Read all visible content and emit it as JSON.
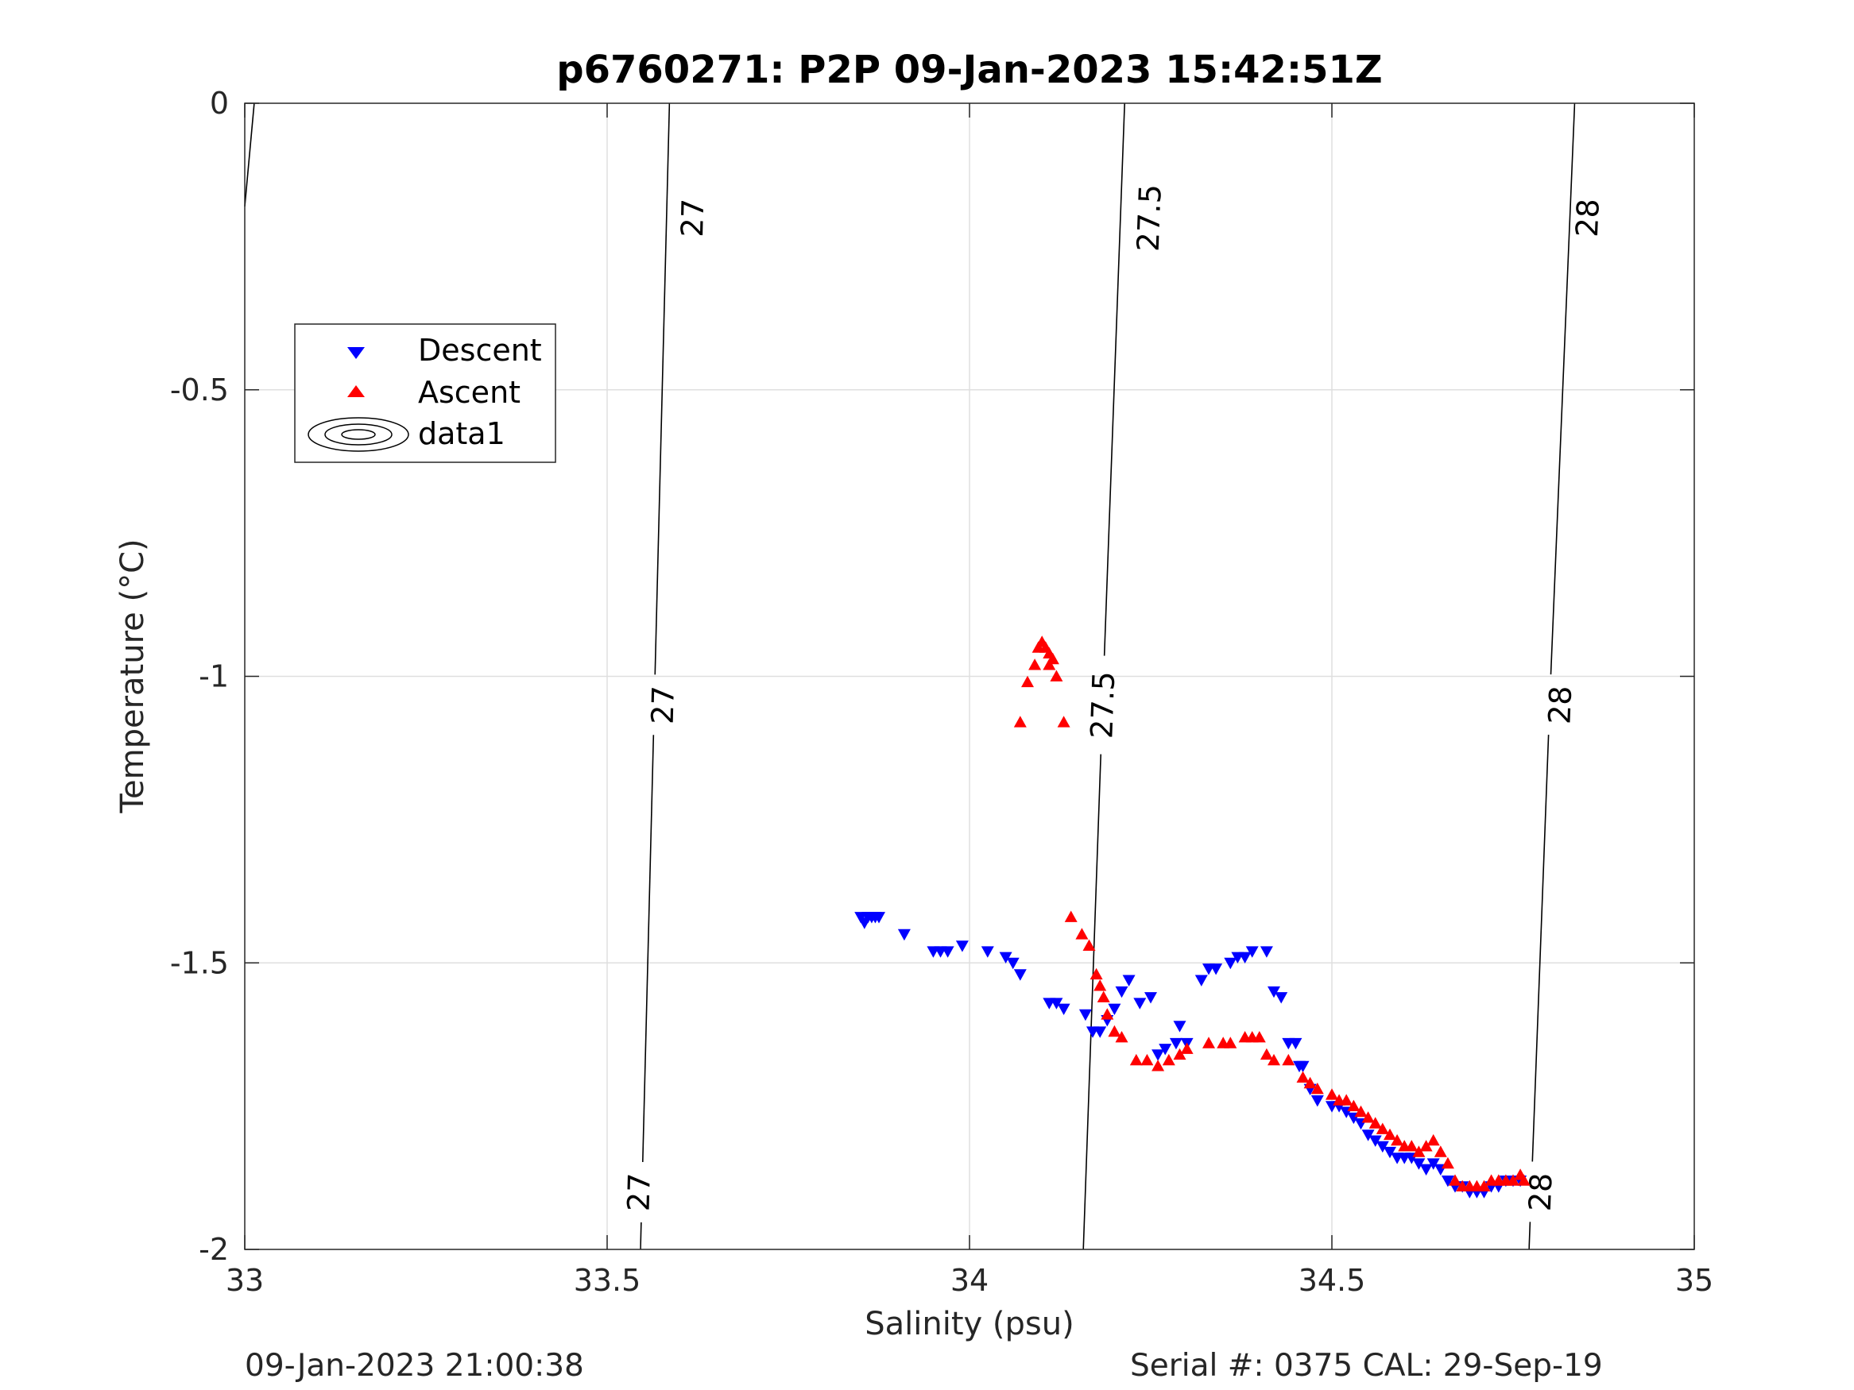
{
  "chart_data": {
    "type": "scatter",
    "title": "p6760271: P2P 09-Jan-2023 15:42:51Z",
    "xlabel": "Salinity (psu)",
    "ylabel": "Temperature (°C)",
    "xlim": [
      33,
      35
    ],
    "ylim": [
      -2,
      0
    ],
    "xticks": [
      "33",
      "33.5",
      "34",
      "34.5",
      "35"
    ],
    "yticks": [
      "-2",
      "-1.5",
      "-1",
      "-0.5",
      "0"
    ],
    "grid": true,
    "legend": {
      "placement": "upper-left",
      "entries": [
        "Descent",
        "Ascent",
        "data1"
      ]
    },
    "series": [
      {
        "name": "Descent",
        "marker": "triangle-down",
        "color": "#0000ff",
        "points": [
          [
            33.85,
            -1.42
          ],
          [
            33.855,
            -1.43
          ],
          [
            33.86,
            -1.42
          ],
          [
            33.865,
            -1.42
          ],
          [
            33.87,
            -1.42
          ],
          [
            33.875,
            -1.42
          ],
          [
            33.91,
            -1.45
          ],
          [
            33.95,
            -1.48
          ],
          [
            33.96,
            -1.48
          ],
          [
            33.97,
            -1.48
          ],
          [
            33.99,
            -1.47
          ],
          [
            34.025,
            -1.48
          ],
          [
            34.05,
            -1.49
          ],
          [
            34.06,
            -1.5
          ],
          [
            34.07,
            -1.52
          ],
          [
            34.11,
            -1.57
          ],
          [
            34.12,
            -1.57
          ],
          [
            34.13,
            -1.58
          ],
          [
            34.16,
            -1.59
          ],
          [
            34.17,
            -1.62
          ],
          [
            34.18,
            -1.62
          ],
          [
            34.19,
            -1.6
          ],
          [
            34.2,
            -1.58
          ],
          [
            34.21,
            -1.55
          ],
          [
            34.22,
            -1.53
          ],
          [
            34.235,
            -1.57
          ],
          [
            34.25,
            -1.56
          ],
          [
            34.26,
            -1.66
          ],
          [
            34.27,
            -1.65
          ],
          [
            34.285,
            -1.64
          ],
          [
            34.29,
            -1.61
          ],
          [
            34.3,
            -1.64
          ],
          [
            34.32,
            -1.53
          ],
          [
            34.33,
            -1.51
          ],
          [
            34.34,
            -1.51
          ],
          [
            34.36,
            -1.5
          ],
          [
            34.37,
            -1.49
          ],
          [
            34.38,
            -1.49
          ],
          [
            34.39,
            -1.48
          ],
          [
            34.41,
            -1.48
          ],
          [
            34.42,
            -1.55
          ],
          [
            34.43,
            -1.56
          ],
          [
            34.44,
            -1.64
          ],
          [
            34.45,
            -1.64
          ],
          [
            34.455,
            -1.68
          ],
          [
            34.46,
            -1.68
          ],
          [
            34.47,
            -1.72
          ],
          [
            34.48,
            -1.74
          ],
          [
            34.5,
            -1.75
          ],
          [
            34.51,
            -1.75
          ],
          [
            34.52,
            -1.76
          ],
          [
            34.53,
            -1.77
          ],
          [
            34.54,
            -1.78
          ],
          [
            34.55,
            -1.8
          ],
          [
            34.56,
            -1.81
          ],
          [
            34.57,
            -1.82
          ],
          [
            34.58,
            -1.83
          ],
          [
            34.59,
            -1.84
          ],
          [
            34.6,
            -1.84
          ],
          [
            34.61,
            -1.84
          ],
          [
            34.62,
            -1.85
          ],
          [
            34.63,
            -1.86
          ],
          [
            34.64,
            -1.85
          ],
          [
            34.65,
            -1.86
          ],
          [
            34.66,
            -1.88
          ],
          [
            34.67,
            -1.89
          ],
          [
            34.68,
            -1.89
          ],
          [
            34.69,
            -1.9
          ],
          [
            34.7,
            -1.9
          ],
          [
            34.71,
            -1.9
          ],
          [
            34.72,
            -1.89
          ],
          [
            34.73,
            -1.89
          ],
          [
            34.74,
            -1.88
          ],
          [
            34.75,
            -1.88
          ],
          [
            34.76,
            -1.88
          ]
        ]
      },
      {
        "name": "Ascent",
        "marker": "triangle-up",
        "color": "#ff0000",
        "points": [
          [
            34.07,
            -1.08
          ],
          [
            34.08,
            -1.01
          ],
          [
            34.09,
            -0.98
          ],
          [
            34.095,
            -0.95
          ],
          [
            34.1,
            -0.94
          ],
          [
            34.105,
            -0.95
          ],
          [
            34.11,
            -0.96
          ],
          [
            34.115,
            -0.97
          ],
          [
            34.12,
            -1.0
          ],
          [
            34.11,
            -0.98
          ],
          [
            34.13,
            -1.08
          ],
          [
            34.14,
            -1.42
          ],
          [
            34.155,
            -1.45
          ],
          [
            34.165,
            -1.47
          ],
          [
            34.175,
            -1.52
          ],
          [
            34.18,
            -1.54
          ],
          [
            34.185,
            -1.56
          ],
          [
            34.19,
            -1.59
          ],
          [
            34.2,
            -1.62
          ],
          [
            34.21,
            -1.63
          ],
          [
            34.23,
            -1.67
          ],
          [
            34.245,
            -1.67
          ],
          [
            34.26,
            -1.68
          ],
          [
            34.275,
            -1.67
          ],
          [
            34.29,
            -1.66
          ],
          [
            34.3,
            -1.65
          ],
          [
            34.33,
            -1.64
          ],
          [
            34.35,
            -1.64
          ],
          [
            34.36,
            -1.64
          ],
          [
            34.38,
            -1.63
          ],
          [
            34.39,
            -1.63
          ],
          [
            34.4,
            -1.63
          ],
          [
            34.41,
            -1.66
          ],
          [
            34.42,
            -1.67
          ],
          [
            34.44,
            -1.67
          ],
          [
            34.46,
            -1.7
          ],
          [
            34.47,
            -1.71
          ],
          [
            34.48,
            -1.72
          ],
          [
            34.5,
            -1.73
          ],
          [
            34.51,
            -1.74
          ],
          [
            34.52,
            -1.74
          ],
          [
            34.53,
            -1.75
          ],
          [
            34.54,
            -1.76
          ],
          [
            34.55,
            -1.77
          ],
          [
            34.56,
            -1.78
          ],
          [
            34.57,
            -1.79
          ],
          [
            34.58,
            -1.8
          ],
          [
            34.59,
            -1.81
          ],
          [
            34.6,
            -1.82
          ],
          [
            34.61,
            -1.82
          ],
          [
            34.62,
            -1.83
          ],
          [
            34.63,
            -1.82
          ],
          [
            34.64,
            -1.81
          ],
          [
            34.65,
            -1.83
          ],
          [
            34.66,
            -1.85
          ],
          [
            34.67,
            -1.88
          ],
          [
            34.68,
            -1.89
          ],
          [
            34.69,
            -1.89
          ],
          [
            34.7,
            -1.89
          ],
          [
            34.71,
            -1.89
          ],
          [
            34.72,
            -1.88
          ],
          [
            34.73,
            -1.88
          ],
          [
            34.74,
            -1.88
          ],
          [
            34.75,
            -1.88
          ],
          [
            34.76,
            -1.87
          ],
          [
            34.765,
            -1.88
          ]
        ]
      }
    ],
    "density_contours": [
      {
        "level": "27",
        "points": [
          [
            33.546,
            -2.0
          ],
          [
            33.566,
            -1.0
          ],
          [
            33.586,
            0.0
          ]
        ],
        "label_positions": [
          [
            33.544,
            -1.9
          ],
          [
            33.577,
            -1.05
          ],
          [
            33.618,
            -0.2
          ]
        ]
      },
      {
        "level": "27.5",
        "points": [
          [
            34.157,
            -2.0
          ],
          [
            34.185,
            -1.0
          ],
          [
            34.214,
            0.0
          ]
        ],
        "label_positions": [
          [
            34.184,
            -1.05
          ],
          [
            34.248,
            -0.2
          ]
        ]
      },
      {
        "level": "28",
        "points": [
          [
            34.772,
            -2.0
          ],
          [
            34.802,
            -1.0
          ],
          [
            34.835,
            0.0
          ]
        ],
        "label_positions": [
          [
            34.788,
            -1.9
          ],
          [
            34.815,
            -1.05
          ],
          [
            34.853,
            -0.2
          ]
        ]
      },
      {
        "level": "",
        "points": [
          [
            33.0,
            -0.18
          ],
          [
            33.013,
            0.0
          ]
        ],
        "label_positions": []
      }
    ]
  },
  "footer": {
    "left": "09-Jan-2023 21:00:38",
    "right": "Serial #: 0375  CAL: 29-Sep-19"
  }
}
